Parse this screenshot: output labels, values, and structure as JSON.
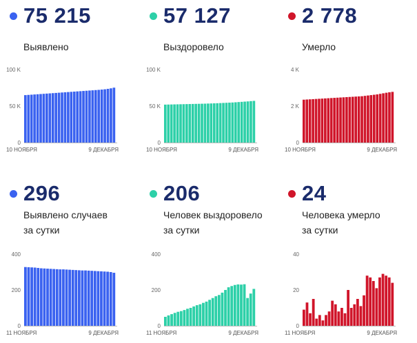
{
  "panels": [
    {
      "value": "75 215",
      "label": "Выявлено",
      "label2": "",
      "color": "#3a62f0",
      "chart_data": {
        "type": "bar",
        "title": "Выявлено",
        "x_start": "10 НОЯБРЯ",
        "x_end": "9 ДЕКАБРЯ",
        "yticks": [
          "0",
          "50 K",
          "100 K"
        ],
        "ylim": [
          0,
          100000
        ],
        "n_bars": 30,
        "values": [
          65000,
          65300,
          65600,
          65900,
          66200,
          66500,
          66800,
          67100,
          67400,
          67700,
          68000,
          68300,
          68600,
          68900,
          69200,
          69500,
          69800,
          70100,
          70400,
          70700,
          71000,
          71300,
          71600,
          71900,
          72200,
          72600,
          73000,
          73600,
          74300,
          75215
        ]
      }
    },
    {
      "value": "57 127",
      "label": "Выздоровело",
      "label2": "",
      "color": "#2dd0a8",
      "chart_data": {
        "type": "bar",
        "title": "Выздоровело",
        "x_start": "10 НОЯБРЯ",
        "x_end": "9 ДЕКАБРЯ",
        "yticks": [
          "0",
          "50 K",
          "100 K"
        ],
        "ylim": [
          0,
          100000
        ],
        "n_bars": 30,
        "values": [
          52000,
          52100,
          52200,
          52300,
          52400,
          52500,
          52600,
          52700,
          52800,
          52900,
          53000,
          53100,
          53200,
          53300,
          53450,
          53600,
          53750,
          53900,
          54100,
          54300,
          54500,
          54700,
          54900,
          55200,
          55500,
          55800,
          56100,
          56400,
          56800,
          57127
        ]
      }
    },
    {
      "value": "2 778",
      "label": "Умерло",
      "label2": "",
      "color": "#d0152a",
      "chart_data": {
        "type": "bar",
        "title": "Умерло",
        "x_start": "10 НОЯБРЯ",
        "x_end": "9 ДЕКАБРЯ",
        "yticks": [
          "0",
          "2 K",
          "4 K"
        ],
        "ylim": [
          0,
          4000
        ],
        "n_bars": 30,
        "values": [
          2350,
          2360,
          2370,
          2380,
          2390,
          2400,
          2410,
          2420,
          2430,
          2440,
          2450,
          2460,
          2470,
          2480,
          2490,
          2500,
          2510,
          2520,
          2530,
          2540,
          2560,
          2580,
          2600,
          2620,
          2640,
          2670,
          2700,
          2730,
          2755,
          2778
        ]
      }
    },
    {
      "value": "296",
      "label": "Выявлено случаев",
      "label2": "за сутки",
      "color": "#3a62f0",
      "chart_data": {
        "type": "bar",
        "title": "Выявлено случаев за сутки",
        "x_start": "11 НОЯБРЯ",
        "x_end": "9 ДЕКАБРЯ",
        "yticks": [
          "0",
          "200",
          "400"
        ],
        "ylim": [
          0,
          400
        ],
        "n_bars": 29,
        "values": [
          328,
          327,
          326,
          325,
          323,
          321,
          320,
          319,
          318,
          317,
          316,
          315,
          315,
          314,
          313,
          312,
          311,
          310,
          309,
          309,
          308,
          307,
          306,
          305,
          304,
          303,
          302,
          300,
          296
        ]
      }
    },
    {
      "value": "206",
      "label": "Человек выздоровело",
      "label2": "за сутки",
      "color": "#2dd0a8",
      "chart_data": {
        "type": "bar",
        "title": "Человек выздоровело за сутки",
        "x_start": "11 НОЯБРЯ",
        "x_end": "9 ДЕКАБРЯ",
        "yticks": [
          "0",
          "200",
          "400"
        ],
        "ylim": [
          0,
          400
        ],
        "n_bars": 29,
        "values": [
          50,
          58,
          65,
          72,
          78,
          82,
          88,
          95,
          100,
          108,
          115,
          120,
          128,
          135,
          145,
          155,
          165,
          172,
          185,
          200,
          215,
          222,
          228,
          231,
          230,
          232,
          155,
          180,
          206
        ]
      }
    },
    {
      "value": "24",
      "label": "Человека умерло",
      "label2": "за сутки",
      "color": "#d0152a",
      "chart_data": {
        "type": "bar",
        "title": "Человека умерло за сутки",
        "x_start": "11 НОЯБРЯ",
        "x_end": "9 ДЕКАБРЯ",
        "yticks": [
          "0",
          "20",
          "40"
        ],
        "ylim": [
          0,
          40
        ],
        "n_bars": 29,
        "values": [
          9,
          13,
          7,
          15,
          4,
          6,
          3,
          6,
          8,
          14,
          12,
          8,
          10,
          7,
          20,
          10,
          12,
          15,
          11,
          17,
          28,
          27,
          25,
          21,
          27,
          29,
          28,
          27,
          24
        ]
      }
    }
  ]
}
